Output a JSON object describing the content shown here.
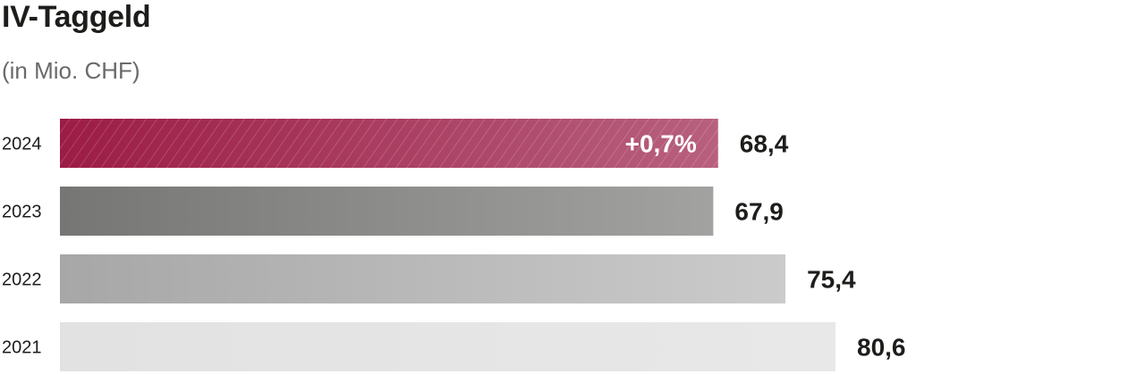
{
  "chart_data": {
    "type": "bar",
    "orientation": "horizontal",
    "title": "IV-Taggeld",
    "subtitle": "(in Mio. CHF)",
    "categories": [
      "2024",
      "2023",
      "2022",
      "2021"
    ],
    "values": [
      68.4,
      67.9,
      75.4,
      80.6
    ],
    "value_labels": [
      "68,4",
      "67,9",
      "75,4",
      "80,6"
    ],
    "annotation": {
      "category": "2024",
      "text": "+0,7%"
    },
    "colors": {
      "2024": [
        "#9c1c45",
        "#b8607e"
      ],
      "2023": [
        "#767674",
        "#a2a2a0"
      ],
      "2022": [
        "#a7a7a7",
        "#cbcbcb"
      ],
      "2021": [
        "#e2e2e2",
        "#e8e8e8"
      ]
    },
    "grid": false,
    "legend": "none"
  }
}
